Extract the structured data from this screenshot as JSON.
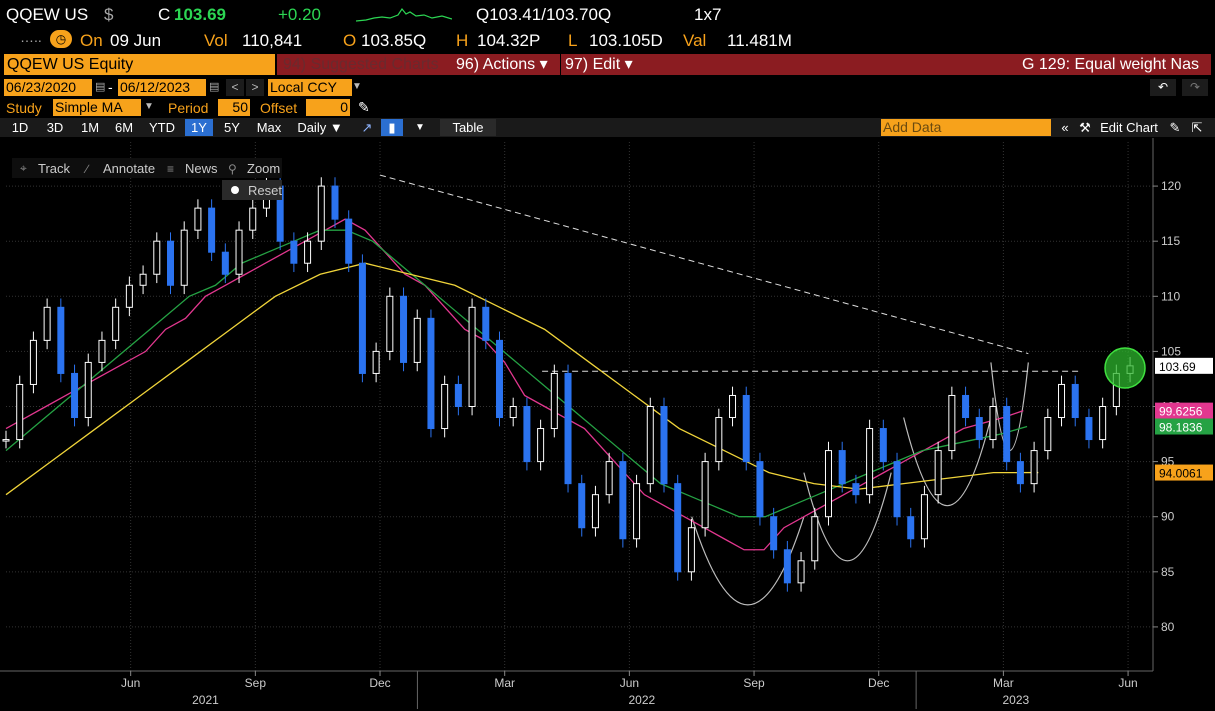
{
  "header": {
    "ticker": "QQEW US",
    "currency_symbol": "$",
    "close_label": "C",
    "close_value": "103.69",
    "change": "+0.20",
    "quote": "Q103.41/103.70Q",
    "size": "1x7",
    "dots": "…..",
    "on_label": "On",
    "date": "09 Jun",
    "vol_label": "Vol",
    "vol_value": "110,841",
    "open_label": "O",
    "open_value": "103.85Q",
    "high_label": "H",
    "high_value": "104.32P",
    "low_label": "L",
    "low_value": "103.105D",
    "val_label": "Val",
    "val_value": "11.481M"
  },
  "toolbar": {
    "security": "QQEW US Equity",
    "suggested": "94) Suggested Charts",
    "actions": "96) Actions ▾",
    "edit": "97) Edit ▾",
    "graph_title": "G 129: Equal weight Nas"
  },
  "range": {
    "start": "06/23/2020",
    "end": "06/12/2023",
    "dash": "-",
    "prev": "<",
    "next": ">",
    "ccy": "Local CCY"
  },
  "study": {
    "label": "Study",
    "value": "Simple MA",
    "period_label": "Period",
    "period_value": "50",
    "offset_label": "Offset",
    "offset_value": "0"
  },
  "periods": {
    "items": [
      "1D",
      "3D",
      "1M",
      "6M",
      "YTD",
      "1Y",
      "5Y",
      "Max"
    ],
    "selected": "1Y",
    "frequency": "Daily ▼",
    "table": "Table",
    "add_data": "Add Data",
    "edit_chart": "Edit Chart"
  },
  "chart_tools": {
    "track": "Track",
    "annotate": "Annotate",
    "news": "News",
    "zoom": "Zoom",
    "reset": "Reset"
  },
  "colors": {
    "price": "#ffffff",
    "price_down": "#2b73f0",
    "ma50": "#e2378f",
    "ma100": "#25a244",
    "ma200": "#f0d43a",
    "label_price": "#ffffff",
    "label_ma50": "#e2378f",
    "label_ma100": "#25a244",
    "label_ma200": "#f7a21b",
    "accent": "#f7a21b",
    "header_red": "#8b1c21"
  },
  "chart_data": {
    "type": "line",
    "title": "QQEW US Equity",
    "ylim": [
      76,
      124
    ],
    "y_ticks": [
      80,
      85,
      90,
      95,
      100,
      105,
      110,
      115,
      120
    ],
    "x_ticks": [
      "Jun",
      "Sep",
      "Dec",
      "Mar",
      "Jun",
      "Sep",
      "Dec",
      "Mar",
      "Jun"
    ],
    "x_tick_index": [
      10,
      20,
      30,
      40,
      50,
      60,
      70,
      80,
      90
    ],
    "years": [
      "2021",
      "2022",
      "2023"
    ],
    "year_index": [
      16,
      51,
      81
    ],
    "x_range": [
      0,
      92
    ],
    "series": [
      {
        "name": "Price",
        "values": [
          97,
          102,
          106,
          109,
          103,
          99,
          104,
          106,
          109,
          111,
          112,
          115,
          111,
          116,
          118,
          114,
          112,
          116,
          118,
          120,
          115,
          113,
          115,
          120,
          117,
          113,
          103,
          105,
          110,
          104,
          108,
          98,
          102,
          100,
          109,
          106,
          99,
          100,
          95,
          98,
          103,
          93,
          89,
          92,
          95,
          88,
          93,
          100,
          93,
          85,
          89,
          95,
          99,
          101,
          95,
          90,
          87,
          84,
          86,
          90,
          96,
          93,
          92,
          98,
          95,
          90,
          88,
          92,
          96,
          101,
          99,
          97,
          100,
          95,
          93,
          96,
          99,
          102,
          99,
          97,
          100,
          103,
          103.69
        ]
      },
      {
        "name": "SMA 50",
        "values": [
          98,
          99,
          100,
          101,
          102,
          103,
          104,
          105,
          107,
          108,
          110,
          111,
          112,
          113,
          114,
          115,
          116,
          117,
          116,
          114,
          112,
          111,
          109,
          107,
          106,
          104,
          101,
          100,
          99,
          98,
          96,
          94,
          92,
          91,
          90,
          89,
          88,
          87,
          87,
          89,
          90,
          91,
          92,
          93,
          94,
          95,
          96,
          97,
          98,
          98.5,
          99,
          99.6256
        ],
        "x_start": 0,
        "x_step": 1.6
      },
      {
        "name": "SMA 100",
        "values": [
          96,
          98,
          100,
          102,
          104,
          106,
          108,
          110,
          111,
          113,
          114,
          115,
          116,
          116,
          115,
          113,
          111,
          109,
          107,
          105,
          103,
          101,
          99,
          97,
          95,
          93,
          92,
          91,
          90,
          90,
          91,
          92,
          93,
          94,
          95,
          96,
          96.5,
          97,
          97.5,
          98.1836
        ],
        "x_start": 0,
        "x_step": 2.1
      },
      {
        "name": "SMA 200",
        "values": [
          92,
          95,
          98,
          101,
          104,
          107,
          110,
          112,
          113,
          112,
          111,
          109,
          107,
          104,
          101,
          98,
          96,
          94,
          93,
          92.5,
          93,
          93.5,
          94,
          94.0061
        ],
        "x_start": 0,
        "x_step": 3.6
      },
      {
        "name": "Trendline",
        "values": [
          121,
          104.8
        ],
        "x": [
          30,
          82
        ]
      },
      {
        "name": "Resistance",
        "values": [
          103.2,
          103.2
        ],
        "x": [
          43,
          86
        ]
      }
    ],
    "last_values": [
      {
        "name": "Price",
        "value": "103.69",
        "y": 103.69
      },
      {
        "name": "SMA 50",
        "value": "99.6256",
        "y": 99.6256
      },
      {
        "name": "SMA 100",
        "value": "98.1836",
        "y": 98.1836
      },
      {
        "name": "SMA 200",
        "value": "94.0061",
        "y": 94.0061
      }
    ]
  }
}
